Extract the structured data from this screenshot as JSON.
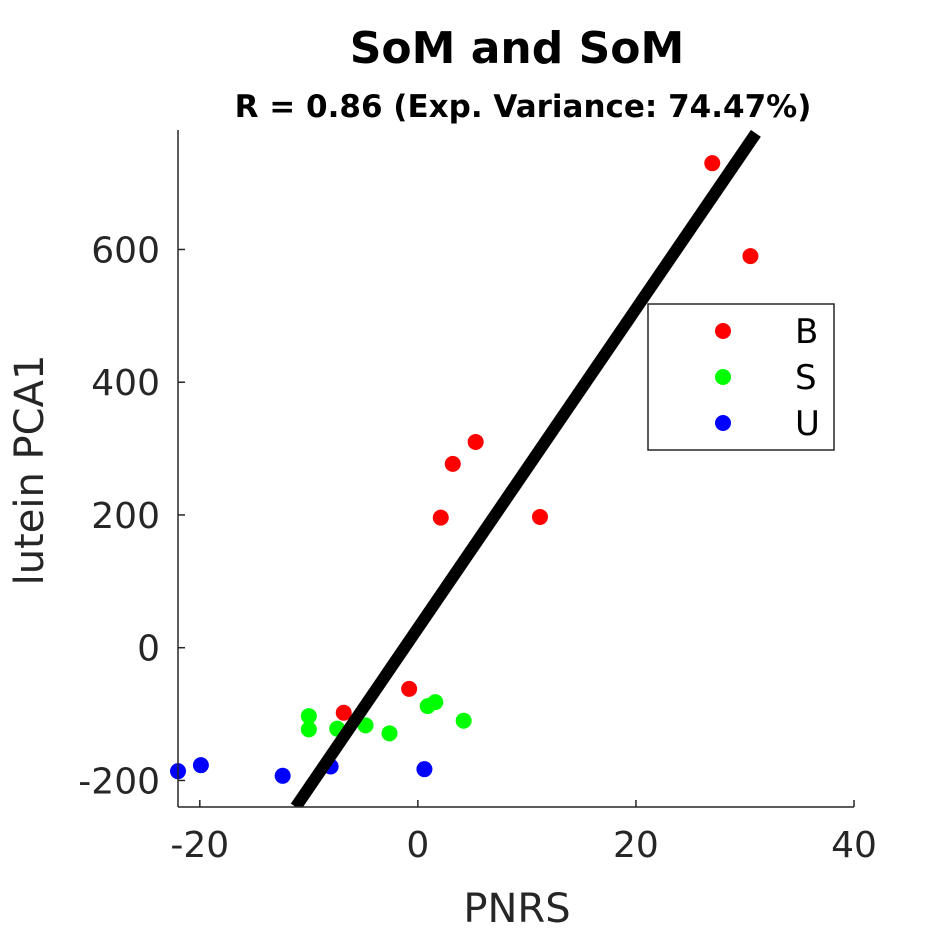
{
  "chart_data": {
    "type": "scatter",
    "title": "SoM and SoM",
    "subtitle": "R = 0.86 (Exp. Variance: 74.47%)",
    "xlabel": "PNRS",
    "ylabel": "lutein PCA1",
    "xlim": [
      -22,
      40
    ],
    "ylim": [
      -240,
      780
    ],
    "xticks": [
      -20,
      0,
      20,
      40
    ],
    "yticks": [
      -200,
      0,
      200,
      400,
      600
    ],
    "grid": false,
    "legend_position": "top-right",
    "series": [
      {
        "name": "B",
        "color": "#ff0000",
        "points": [
          {
            "x": 27,
            "y": 730
          },
          {
            "x": 30.5,
            "y": 590
          },
          {
            "x": 5.3,
            "y": 310
          },
          {
            "x": 3.2,
            "y": 277
          },
          {
            "x": 2.1,
            "y": 196
          },
          {
            "x": 11.2,
            "y": 197
          },
          {
            "x": -0.8,
            "y": -62
          },
          {
            "x": -6.8,
            "y": -98
          }
        ]
      },
      {
        "name": "S",
        "color": "#00ff00",
        "points": [
          {
            "x": -10,
            "y": -103
          },
          {
            "x": -10,
            "y": -123
          },
          {
            "x": -7.4,
            "y": -122
          },
          {
            "x": -4.8,
            "y": -117
          },
          {
            "x": -2.6,
            "y": -129
          },
          {
            "x": 0.9,
            "y": -88
          },
          {
            "x": 1.6,
            "y": -82
          },
          {
            "x": 4.2,
            "y": -110
          }
        ]
      },
      {
        "name": "U",
        "color": "#0000ff",
        "points": [
          {
            "x": -22,
            "y": -186
          },
          {
            "x": -19.9,
            "y": -177
          },
          {
            "x": -12.4,
            "y": -193
          },
          {
            "x": -8,
            "y": -179
          },
          {
            "x": 0.6,
            "y": -183
          }
        ]
      }
    ],
    "fit_line": {
      "color": "#000000",
      "from": {
        "x": -11.2,
        "y": -240
      },
      "to": {
        "x": 31,
        "y": 775
      }
    }
  }
}
